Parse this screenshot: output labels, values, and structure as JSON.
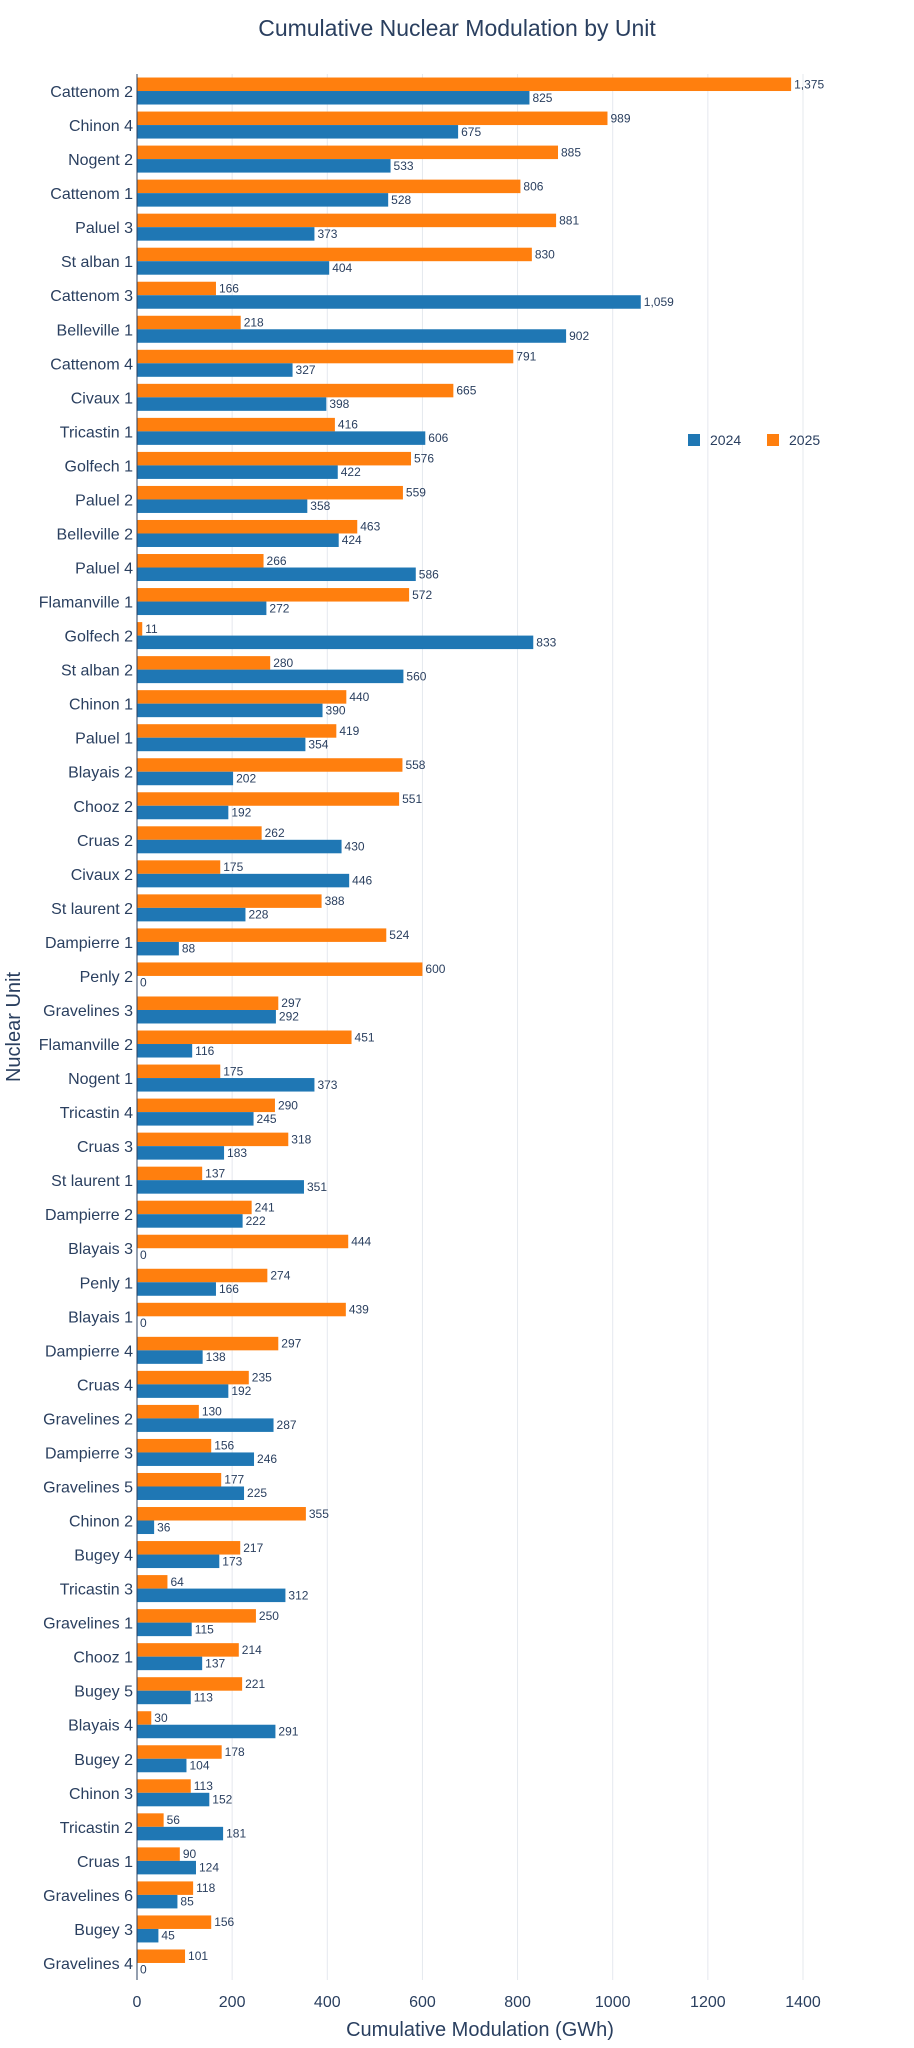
{
  "chart_data": {
    "type": "bar",
    "orientation": "horizontal",
    "title": "Cumulative Nuclear Modulation by Unit",
    "xlabel": "Cumulative Modulation (GWh)",
    "ylabel": "Nuclear Unit",
    "xlim": [
      0,
      1400
    ],
    "x_ticks": [
      0,
      200,
      400,
      600,
      800,
      1000,
      1200,
      1400
    ],
    "grid": "vertical",
    "legend_position": "right",
    "categories": [
      "Cattenom 2",
      "Chinon 4",
      "Nogent 2",
      "Cattenom 1",
      "Paluel 3",
      "St alban 1",
      "Cattenom 3",
      "Belleville 1",
      "Cattenom 4",
      "Civaux 1",
      "Tricastin 1",
      "Golfech 1",
      "Paluel 2",
      "Belleville 2",
      "Paluel 4",
      "Flamanville 1",
      "Golfech 2",
      "St alban 2",
      "Chinon 1",
      "Paluel 1",
      "Blayais 2",
      "Chooz 2",
      "Cruas 2",
      "Civaux 2",
      "St laurent 2",
      "Dampierre 1",
      "Penly 2",
      "Gravelines 3",
      "Flamanville 2",
      "Nogent 1",
      "Tricastin 4",
      "Cruas 3",
      "St laurent 1",
      "Dampierre 2",
      "Blayais 3",
      "Penly 1",
      "Blayais 1",
      "Dampierre 4",
      "Cruas 4",
      "Gravelines 2",
      "Dampierre 3",
      "Gravelines 5",
      "Chinon 2",
      "Bugey 4",
      "Tricastin 3",
      "Gravelines 1",
      "Chooz 1",
      "Bugey 5",
      "Blayais 4",
      "Bugey 2",
      "Chinon 3",
      "Tricastin 2",
      "Cruas 1",
      "Gravelines 6",
      "Bugey 3",
      "Gravelines 4"
    ],
    "series": [
      {
        "name": "2024",
        "color": "#1f77b4",
        "values": [
          825,
          675,
          533,
          528,
          373,
          404,
          1059,
          902,
          327,
          398,
          606,
          422,
          358,
          424,
          586,
          272,
          833,
          560,
          390,
          354,
          202,
          192,
          430,
          446,
          228,
          88,
          0,
          292,
          116,
          373,
          245,
          183,
          351,
          222,
          0,
          166,
          0,
          138,
          192,
          287,
          246,
          225,
          36,
          173,
          312,
          115,
          137,
          113,
          291,
          104,
          152,
          181,
          124,
          85,
          45,
          0
        ],
        "labels": [
          "825",
          "675",
          "533",
          "528",
          "373",
          "404",
          "1,059",
          "902",
          "327",
          "398",
          "606",
          "422",
          "358",
          "424",
          "586",
          "272",
          "833",
          "560",
          "390",
          "354",
          "202",
          "192",
          "430",
          "446",
          "228",
          "88",
          "0",
          "292",
          "116",
          "373",
          "245",
          "183",
          "351",
          "222",
          "0",
          "166",
          "0",
          "138",
          "192",
          "287",
          "246",
          "225",
          "36",
          "173",
          "312",
          "115",
          "137",
          "113",
          "291",
          "104",
          "152",
          "181",
          "124",
          "85",
          "45",
          "0"
        ]
      },
      {
        "name": "2025",
        "color": "#ff7f0e",
        "values": [
          1375,
          989,
          885,
          806,
          881,
          830,
          166,
          218,
          791,
          665,
          416,
          576,
          559,
          463,
          266,
          572,
          11,
          280,
          440,
          419,
          558,
          551,
          262,
          175,
          388,
          524,
          600,
          297,
          451,
          175,
          290,
          318,
          137,
          241,
          444,
          274,
          439,
          297,
          235,
          130,
          156,
          177,
          355,
          217,
          64,
          250,
          214,
          221,
          30,
          178,
          113,
          56,
          90,
          118,
          156,
          101
        ],
        "labels": [
          "1,375",
          "989",
          "885",
          "806",
          "881",
          "830",
          "166",
          "218",
          "791",
          "665",
          "416",
          "576",
          "559",
          "463",
          "266",
          "572",
          "11",
          "280",
          "440",
          "419",
          "558",
          "551",
          "262",
          "175",
          "388",
          "524",
          "600",
          "297",
          "451",
          "175",
          "290",
          "318",
          "137",
          "241",
          "444",
          "274",
          "439",
          "297",
          "235",
          "130",
          "156",
          "177",
          "355",
          "217",
          "64",
          "250",
          "214",
          "221",
          "30",
          "178",
          "113",
          "56",
          "90",
          "118",
          "156",
          "101"
        ]
      }
    ]
  }
}
